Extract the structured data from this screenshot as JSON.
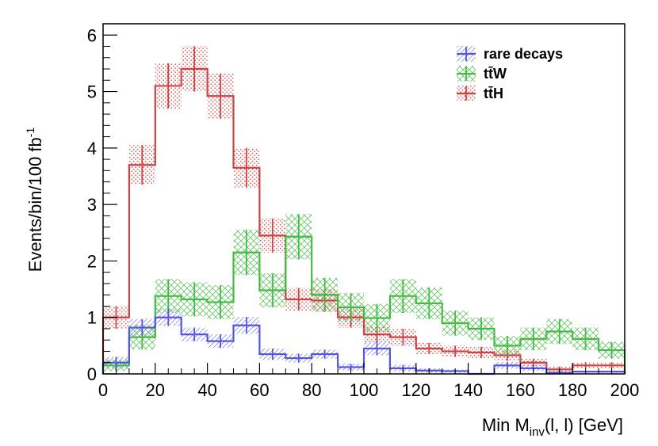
{
  "chart_data": {
    "type": "histogram",
    "xlabel": {
      "main": "Min M",
      "sub": "inv",
      "rest": "(l, l) [GeV]"
    },
    "ylabel": {
      "main": "Events/bin/100 fb",
      "sup": "-1"
    },
    "xlim": [
      0,
      200
    ],
    "ylim": [
      0,
      6.2
    ],
    "x_ticks": [
      0,
      20,
      40,
      60,
      80,
      100,
      120,
      140,
      160,
      180,
      200
    ],
    "y_ticks": [
      0,
      1,
      2,
      3,
      4,
      5,
      6
    ],
    "x_tick_labels": [
      "0",
      "20",
      "40",
      "60",
      "80",
      "100",
      "120",
      "140",
      "160",
      "180",
      "200"
    ],
    "y_tick_labels": [
      "0",
      "1",
      "2",
      "3",
      "4",
      "5",
      "6"
    ],
    "bin_edges": [
      0,
      10,
      20,
      30,
      40,
      50,
      60,
      70,
      80,
      90,
      100,
      110,
      120,
      130,
      140,
      150,
      160,
      170,
      180,
      190,
      200
    ],
    "legend_position": "top-right",
    "series": [
      {
        "name": "rare decays",
        "color": "#5555dd",
        "hatch": "#8888ee",
        "values": [
          0.2,
          0.82,
          1.0,
          0.7,
          0.58,
          0.86,
          0.35,
          0.28,
          0.35,
          0.12,
          0.45,
          0.1,
          0.06,
          0.05,
          0.0,
          0.15,
          0.1,
          0.02,
          0.04,
          0.04
        ],
        "errors": [
          0.1,
          0.15,
          0.15,
          0.12,
          0.12,
          0.15,
          0.1,
          0.08,
          0.08,
          0.06,
          0.12,
          0.06,
          0.04,
          0.03,
          0.0,
          0.06,
          0.05,
          0.02,
          0.02,
          0.02
        ]
      },
      {
        "name": "tt̄W",
        "color": "#44bb44",
        "hatch": "#77cc77",
        "values": [
          0.15,
          0.65,
          1.38,
          1.32,
          1.27,
          2.15,
          1.48,
          2.43,
          1.4,
          1.18,
          0.99,
          1.38,
          1.25,
          0.9,
          0.8,
          0.5,
          0.62,
          0.75,
          0.62,
          0.42
        ],
        "errors": [
          0.1,
          0.22,
          0.3,
          0.3,
          0.3,
          0.4,
          0.3,
          0.4,
          0.3,
          0.25,
          0.25,
          0.3,
          0.28,
          0.22,
          0.2,
          0.17,
          0.2,
          0.22,
          0.2,
          0.15
        ]
      },
      {
        "name": "tt̄H",
        "color": "#cc4444",
        "hatch": "#dd7777",
        "values": [
          1.0,
          3.7,
          5.1,
          5.4,
          4.92,
          3.65,
          2.45,
          1.32,
          1.3,
          1.0,
          0.7,
          0.65,
          0.45,
          0.4,
          0.38,
          0.33,
          0.2,
          0.08,
          0.15,
          0.15
        ],
        "errors": [
          0.2,
          0.35,
          0.4,
          0.4,
          0.4,
          0.35,
          0.3,
          0.2,
          0.2,
          0.18,
          0.15,
          0.15,
          0.1,
          0.1,
          0.1,
          0.1,
          0.07,
          0.05,
          0.06,
          0.06
        ]
      }
    ]
  }
}
